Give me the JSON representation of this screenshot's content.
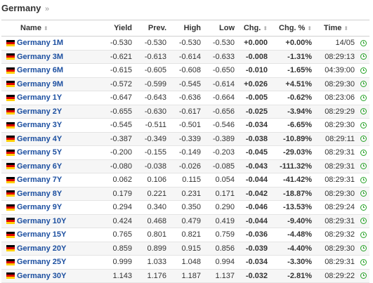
{
  "page": {
    "title": "Germany",
    "breadcrumb_arrow": "»"
  },
  "colors": {
    "positive": "#1a9f1a",
    "negative": "#e31414",
    "link": "#1c4fa0",
    "clock": "#27a327"
  },
  "table": {
    "headers": {
      "name": "Name",
      "yield": "Yield",
      "prev": "Prev.",
      "high": "High",
      "low": "Low",
      "chg": "Chg.",
      "chg_pct": "Chg. %",
      "time": "Time"
    },
    "sort_icon": "sort-arrows-icon",
    "flag_icon": "germany-flag-icon",
    "status_icon": "clock-icon",
    "rows": [
      {
        "name": "Germany 1M",
        "yield": "-0.530",
        "prev": "-0.530",
        "high": "-0.530",
        "low": "-0.530",
        "chg": "+0.000",
        "chg_pct": "+0.00%",
        "time": "14/05",
        "dir": "pos"
      },
      {
        "name": "Germany 3M",
        "yield": "-0.621",
        "prev": "-0.613",
        "high": "-0.614",
        "low": "-0.633",
        "chg": "-0.008",
        "chg_pct": "-1.31%",
        "time": "08:29:13",
        "dir": "neg"
      },
      {
        "name": "Germany 6M",
        "yield": "-0.615",
        "prev": "-0.605",
        "high": "-0.608",
        "low": "-0.650",
        "chg": "-0.010",
        "chg_pct": "-1.65%",
        "time": "04:39:00",
        "dir": "neg"
      },
      {
        "name": "Germany 9M",
        "yield": "-0.572",
        "prev": "-0.599",
        "high": "-0.545",
        "low": "-0.614",
        "chg": "+0.026",
        "chg_pct": "+4.51%",
        "time": "08:29:30",
        "dir": "pos"
      },
      {
        "name": "Germany 1Y",
        "yield": "-0.647",
        "prev": "-0.643",
        "high": "-0.636",
        "low": "-0.664",
        "chg": "-0.005",
        "chg_pct": "-0.62%",
        "time": "08:23:06",
        "dir": "neg"
      },
      {
        "name": "Germany 2Y",
        "yield": "-0.655",
        "prev": "-0.630",
        "high": "-0.617",
        "low": "-0.656",
        "chg": "-0.025",
        "chg_pct": "-3.94%",
        "time": "08:29:29",
        "dir": "neg"
      },
      {
        "name": "Germany 3Y",
        "yield": "-0.545",
        "prev": "-0.511",
        "high": "-0.501",
        "low": "-0.546",
        "chg": "-0.034",
        "chg_pct": "-6.65%",
        "time": "08:29:30",
        "dir": "neg"
      },
      {
        "name": "Germany 4Y",
        "yield": "-0.387",
        "prev": "-0.349",
        "high": "-0.339",
        "low": "-0.389",
        "chg": "-0.038",
        "chg_pct": "-10.89%",
        "time": "08:29:11",
        "dir": "neg"
      },
      {
        "name": "Germany 5Y",
        "yield": "-0.200",
        "prev": "-0.155",
        "high": "-0.149",
        "low": "-0.203",
        "chg": "-0.045",
        "chg_pct": "-29.03%",
        "time": "08:29:31",
        "dir": "neg"
      },
      {
        "name": "Germany 6Y",
        "yield": "-0.080",
        "prev": "-0.038",
        "high": "-0.026",
        "low": "-0.085",
        "chg": "-0.043",
        "chg_pct": "-111.32%",
        "time": "08:29:31",
        "dir": "neg"
      },
      {
        "name": "Germany 7Y",
        "yield": "0.062",
        "prev": "0.106",
        "high": "0.115",
        "low": "0.054",
        "chg": "-0.044",
        "chg_pct": "-41.42%",
        "time": "08:29:31",
        "dir": "neg"
      },
      {
        "name": "Germany 8Y",
        "yield": "0.179",
        "prev": "0.221",
        "high": "0.231",
        "low": "0.171",
        "chg": "-0.042",
        "chg_pct": "-18.87%",
        "time": "08:29:30",
        "dir": "neg"
      },
      {
        "name": "Germany 9Y",
        "yield": "0.294",
        "prev": "0.340",
        "high": "0.350",
        "low": "0.290",
        "chg": "-0.046",
        "chg_pct": "-13.53%",
        "time": "08:29:24",
        "dir": "neg"
      },
      {
        "name": "Germany 10Y",
        "yield": "0.424",
        "prev": "0.468",
        "high": "0.479",
        "low": "0.419",
        "chg": "-0.044",
        "chg_pct": "-9.40%",
        "time": "08:29:31",
        "dir": "neg"
      },
      {
        "name": "Germany 15Y",
        "yield": "0.765",
        "prev": "0.801",
        "high": "0.821",
        "low": "0.759",
        "chg": "-0.036",
        "chg_pct": "-4.48%",
        "time": "08:29:32",
        "dir": "neg"
      },
      {
        "name": "Germany 20Y",
        "yield": "0.859",
        "prev": "0.899",
        "high": "0.915",
        "low": "0.856",
        "chg": "-0.039",
        "chg_pct": "-4.40%",
        "time": "08:29:30",
        "dir": "neg"
      },
      {
        "name": "Germany 25Y",
        "yield": "0.999",
        "prev": "1.033",
        "high": "1.048",
        "low": "0.994",
        "chg": "-0.034",
        "chg_pct": "-3.30%",
        "time": "08:29:31",
        "dir": "neg"
      },
      {
        "name": "Germany 30Y",
        "yield": "1.143",
        "prev": "1.176",
        "high": "1.187",
        "low": "1.137",
        "chg": "-0.032",
        "chg_pct": "-2.81%",
        "time": "08:29:22",
        "dir": "neg"
      }
    ]
  }
}
